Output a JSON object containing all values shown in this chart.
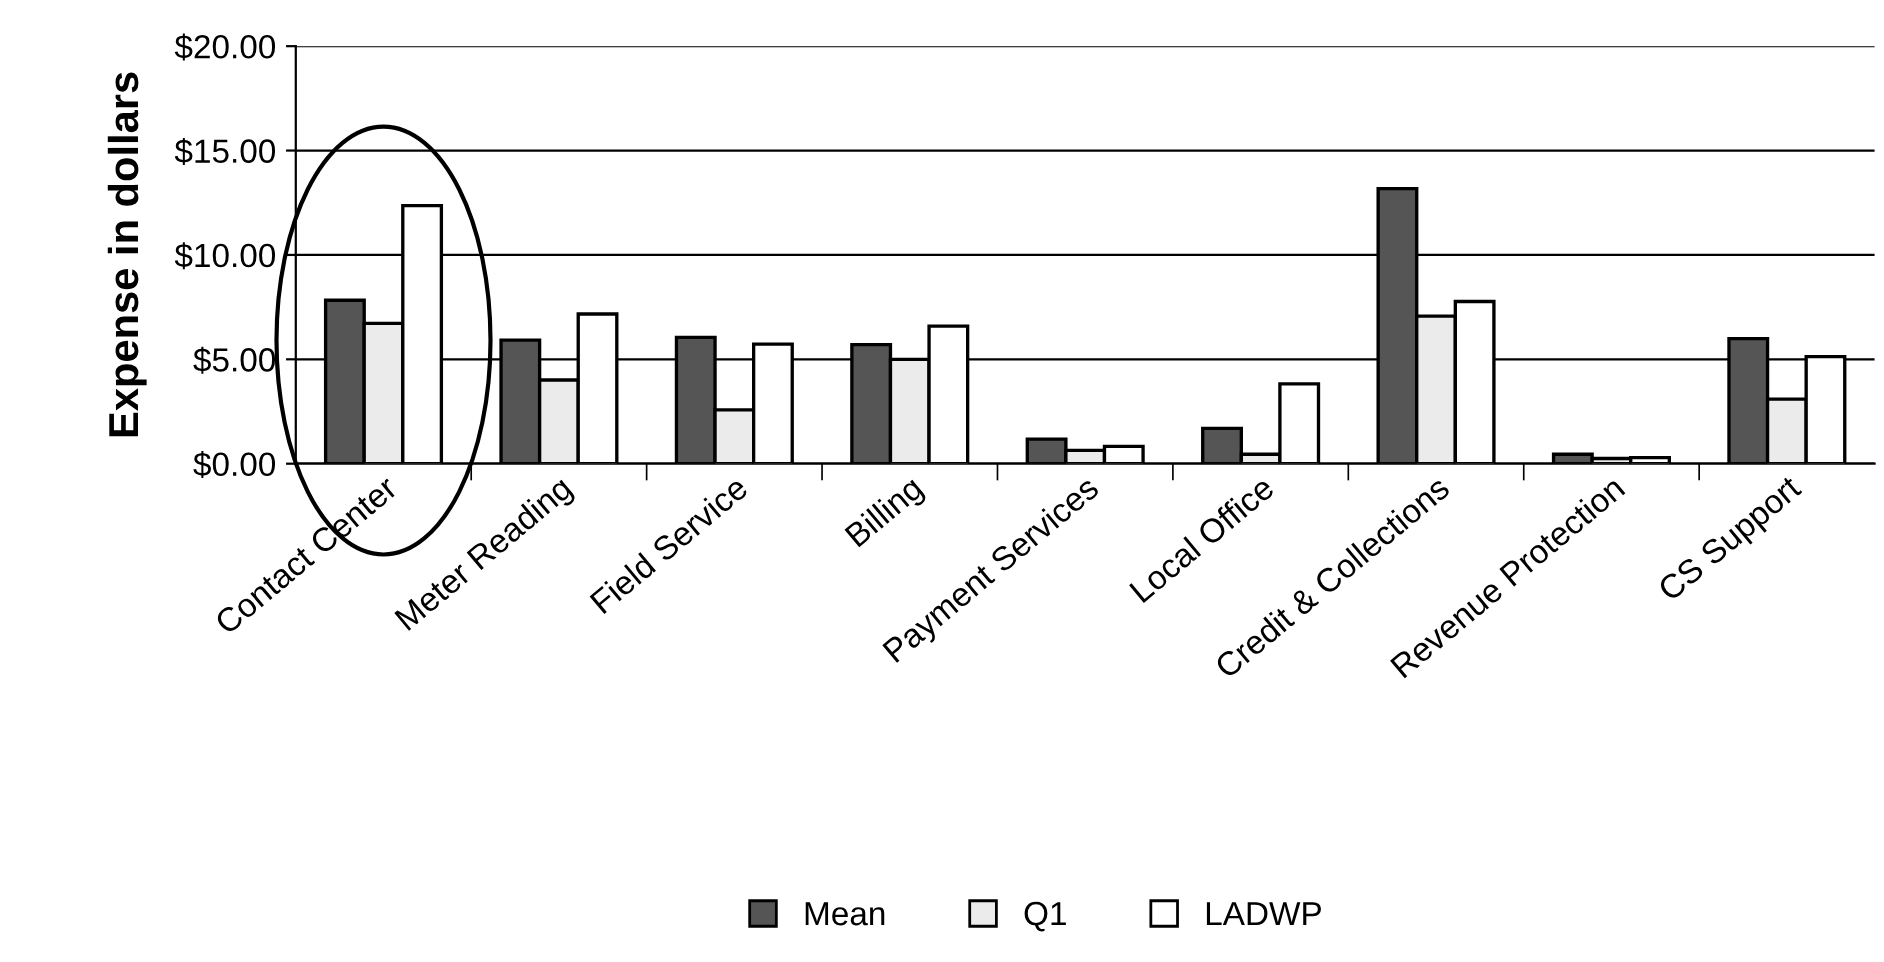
{
  "chart_data": {
    "type": "bar",
    "ylabel": "Expense in dollars",
    "categories": [
      "Contact Center",
      "Meter Reading",
      "Field Service",
      "Billing",
      "Payment Services",
      "Local Office",
      "Credit & Collections",
      "Revenue Protection",
      "CS Support"
    ],
    "series": [
      {
        "name": "Mean",
        "color": "#555555",
        "values": [
          7.83,
          5.92,
          6.05,
          5.7,
          1.18,
          1.69,
          13.18,
          0.45,
          5.99
        ]
      },
      {
        "name": "Q1",
        "color": "#ebebeb",
        "values": [
          6.72,
          4.01,
          2.58,
          5.0,
          0.64,
          0.45,
          7.07,
          0.25,
          3.09
        ]
      },
      {
        "name": "LADWP",
        "color": "#ffffff",
        "values": [
          12.36,
          7.17,
          5.73,
          6.59,
          0.83,
          3.82,
          7.77,
          0.29,
          5.13
        ]
      }
    ],
    "ylim": [
      0,
      20
    ],
    "yticks": [
      {
        "value": 0,
        "label": "$0.00"
      },
      {
        "value": 5,
        "label": "$5.00"
      },
      {
        "value": 10,
        "label": "$10.00"
      },
      {
        "value": 15,
        "label": "$15.00"
      },
      {
        "value": 20,
        "label": "$20.00"
      }
    ],
    "grid": "y",
    "legend": "bottom"
  }
}
